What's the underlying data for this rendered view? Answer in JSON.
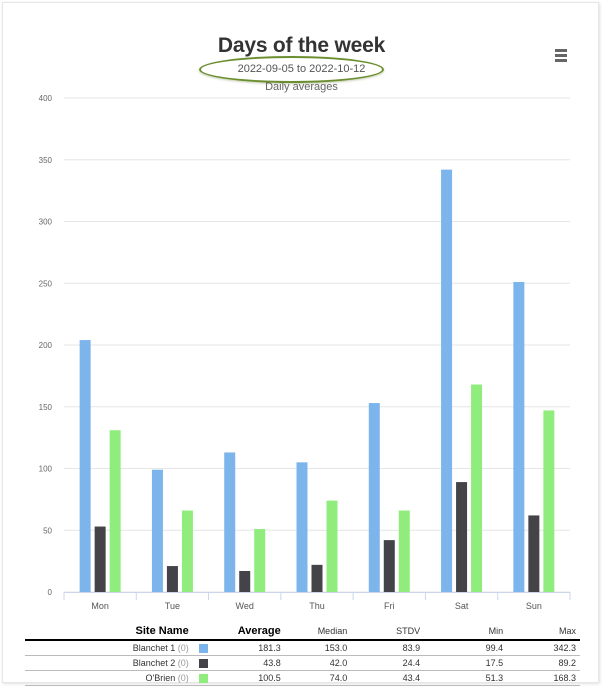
{
  "header": {
    "title": "Days of the week",
    "date_range": "2022-09-05 to 2022-10-12",
    "subtitle": "Daily averages"
  },
  "menu": {
    "icon": "hamburger-menu-icon"
  },
  "chart_data": {
    "type": "bar",
    "title": "Days of the week",
    "subtitle": "Daily averages",
    "categories": [
      "Mon",
      "Tue",
      "Wed",
      "Thu",
      "Fri",
      "Sat",
      "Sun"
    ],
    "ylim": [
      0,
      400
    ],
    "yticks": [
      0,
      50,
      100,
      150,
      200,
      250,
      300,
      350,
      400
    ],
    "grid": true,
    "series": [
      {
        "name": "Blanchet 1",
        "color": "#7cb5ec",
        "values": [
          204,
          99,
          113,
          105,
          153,
          342,
          251
        ]
      },
      {
        "name": "Blanchet 2",
        "color": "#434348",
        "values": [
          53,
          21,
          17,
          22,
          42,
          89,
          62
        ]
      },
      {
        "name": "O'Brien",
        "color": "#90ed7d",
        "values": [
          131,
          66,
          51,
          74,
          66,
          168,
          147
        ]
      }
    ]
  },
  "stats_table": {
    "headers": {
      "name": "Site Name",
      "average": "Average",
      "median": "Median",
      "stdv": "STDV",
      "min": "Min",
      "max": "Max"
    },
    "rows": [
      {
        "name": "Blanchet 1",
        "sub": "(0)",
        "color": "#7cb5ec",
        "average": "181.3",
        "median": "153.0",
        "stdv": "83.9",
        "min": "99.4",
        "max": "342.3"
      },
      {
        "name": "Blanchet 2",
        "sub": "(0)",
        "color": "#434348",
        "average": "43.8",
        "median": "42.0",
        "stdv": "24.4",
        "min": "17.5",
        "max": "89.2"
      },
      {
        "name": "O'Brien",
        "sub": "(0)",
        "color": "#90ed7d",
        "average": "100.5",
        "median": "74.0",
        "stdv": "43.4",
        "min": "51.3",
        "max": "168.3"
      }
    ]
  }
}
